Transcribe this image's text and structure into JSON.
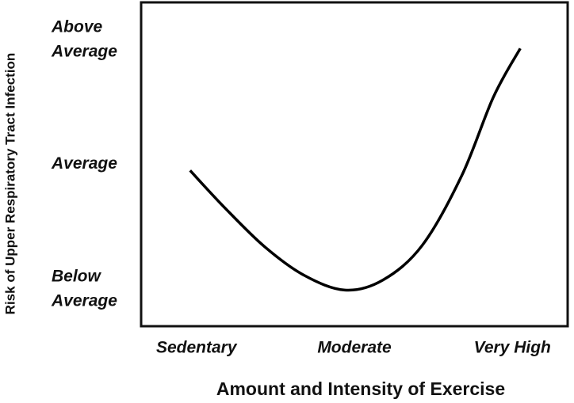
{
  "chart_data": {
    "type": "line",
    "x_label": "Amount and Intensity of Exercise",
    "y_label": "Risk of Upper Respiratory Tract Infection",
    "x": [
      -0.04,
      0.18,
      0.43,
      0.68,
      0.94,
      1.18,
      1.43,
      1.68,
      1.88,
      2.05
    ],
    "series": [
      {
        "color": "#000000",
        "values": [
          1.95,
          1.65,
          1.34,
          1.11,
          0.99,
          1.07,
          1.35,
          1.91,
          2.54,
          2.93
        ]
      }
    ],
    "xlim": [
      -0.35,
      2.35
    ],
    "xticks": [
      {
        "value": 0,
        "label": "Sedentary"
      },
      {
        "value": 1,
        "label": "Moderate"
      },
      {
        "value": 2,
        "label": "Very High"
      }
    ],
    "ylim": [
      0.7,
      3.3
    ],
    "yticks": [
      {
        "value": 1,
        "label": "Below Average"
      },
      {
        "value": 2,
        "label": "Average"
      },
      {
        "value": 3,
        "label": "Above Average"
      }
    ],
    "grid": false
  }
}
